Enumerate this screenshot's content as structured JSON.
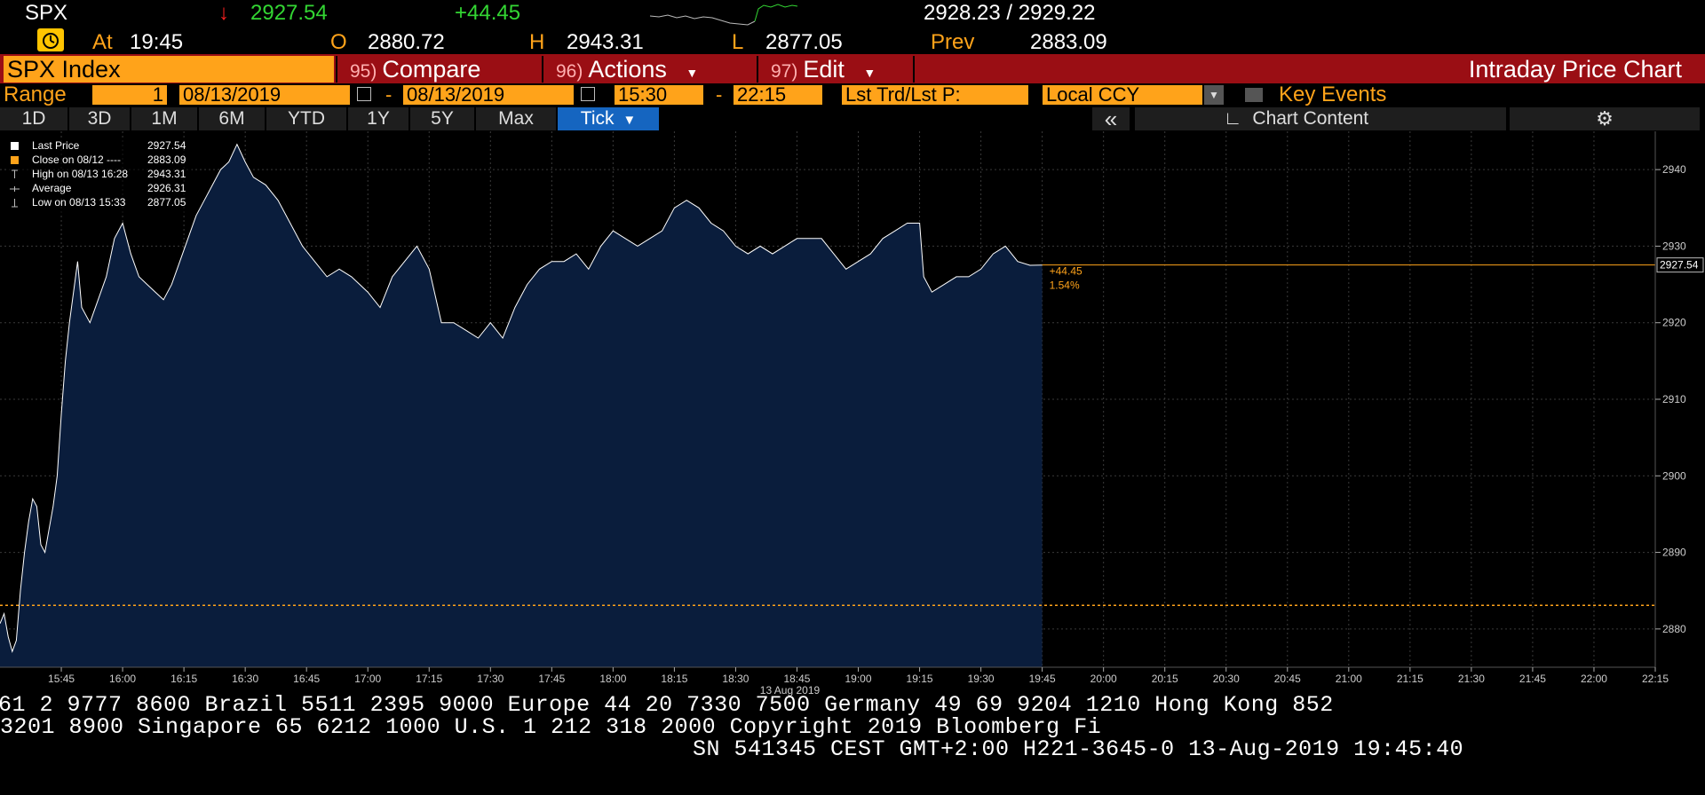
{
  "header": {
    "ticker": "SPX",
    "direction_icon": "down-arrow",
    "last": "2927.54",
    "change": "+44.45",
    "bid_ask": "2928.23 / 2929.22",
    "at_label": "At",
    "time": "19:45",
    "open_label": "O",
    "open": "2880.72",
    "high_label": "H",
    "high": "2943.31",
    "low_label": "L",
    "low": "2877.05",
    "prev_label": "Prev",
    "prev": "2883.09"
  },
  "toolbar": {
    "security": "SPX Index",
    "compare_num": "95)",
    "compare": "Compare",
    "actions_num": "96)",
    "actions": "Actions",
    "edit_num": "97)",
    "edit": "Edit",
    "title": "Intraday Price Chart"
  },
  "range": {
    "label": "Range",
    "count": "1",
    "start_date": "08/13/2019",
    "end_date": "08/13/2019",
    "start_time": "15:30",
    "end_time": "22:15",
    "field": "Lst Trd/Lst P:",
    "currency": "Local CCY",
    "key_events": "Key Events"
  },
  "periods": [
    "1D",
    "3D",
    "1M",
    "6M",
    "YTD",
    "1Y",
    "5Y",
    "Max"
  ],
  "active_period": "Tick",
  "chart_content": "Chart Content",
  "colors": {
    "area": "#0a1d3c",
    "line": "#ffffff",
    "prev_close": "#ffa31a",
    "grid": "#3a3a3a",
    "toolbar": "#9a0e14",
    "orange": "#ffa31a"
  },
  "chart_data": {
    "type": "area",
    "date_label": "13 Aug 2019",
    "x_ticks": [
      "15:45",
      "16:00",
      "16:15",
      "16:30",
      "16:45",
      "17:00",
      "17:15",
      "17:30",
      "17:45",
      "18:00",
      "18:15",
      "18:30",
      "18:45",
      "19:00",
      "19:15",
      "19:30",
      "19:45",
      "20:00",
      "20:15",
      "20:30",
      "20:45",
      "21:00",
      "21:15",
      "21:30",
      "21:45",
      "22:00",
      "22:15"
    ],
    "y_ticks": [
      2880,
      2890,
      2900,
      2910,
      2920,
      2930,
      2940
    ],
    "ylim": [
      2875,
      2945
    ],
    "xlim": [
      "15:30",
      "22:15"
    ],
    "prev_close": 2883.09,
    "last_price": 2927.54,
    "last_label": "2927.54",
    "change_label": "+44.45",
    "change_pct_label": "1.54%",
    "legend": [
      {
        "marker": "white-square",
        "label": "Last Price",
        "value": "2927.54"
      },
      {
        "marker": "orange-square",
        "label": "Close on 08/12 ----",
        "value": "2883.09"
      },
      {
        "marker": "high-marker",
        "label": "High on 08/13 16:28",
        "value": "2943.31"
      },
      {
        "marker": "average-marker",
        "label": "Average",
        "value": "2926.31"
      },
      {
        "marker": "low-marker",
        "label": "Low on 08/13 15:33",
        "value": "2877.05"
      }
    ],
    "series": [
      {
        "name": "Last Price",
        "points": [
          [
            "15:30",
            2880.7
          ],
          [
            "15:31",
            2882
          ],
          [
            "15:32",
            2879
          ],
          [
            "15:33",
            2877.05
          ],
          [
            "15:34",
            2878.5
          ],
          [
            "15:35",
            2885
          ],
          [
            "15:36",
            2890
          ],
          [
            "15:37",
            2894
          ],
          [
            "15:38",
            2897
          ],
          [
            "15:39",
            2896
          ],
          [
            "15:40",
            2891
          ],
          [
            "15:41",
            2890
          ],
          [
            "15:42",
            2893
          ],
          [
            "15:43",
            2896
          ],
          [
            "15:44",
            2900
          ],
          [
            "15:45",
            2908
          ],
          [
            "15:46",
            2915
          ],
          [
            "15:47",
            2920
          ],
          [
            "15:48",
            2924
          ],
          [
            "15:49",
            2928
          ],
          [
            "15:50",
            2922
          ],
          [
            "15:52",
            2920
          ],
          [
            "15:54",
            2923
          ],
          [
            "15:56",
            2926
          ],
          [
            "15:58",
            2931
          ],
          [
            "16:00",
            2933
          ],
          [
            "16:02",
            2929
          ],
          [
            "16:04",
            2926
          ],
          [
            "16:06",
            2925
          ],
          [
            "16:08",
            2924
          ],
          [
            "16:10",
            2923
          ],
          [
            "16:12",
            2925
          ],
          [
            "16:14",
            2928
          ],
          [
            "16:16",
            2931
          ],
          [
            "16:18",
            2934
          ],
          [
            "16:20",
            2936
          ],
          [
            "16:22",
            2938
          ],
          [
            "16:24",
            2940
          ],
          [
            "16:26",
            2941
          ],
          [
            "16:28",
            2943.3
          ],
          [
            "16:30",
            2941
          ],
          [
            "16:32",
            2939
          ],
          [
            "16:35",
            2938
          ],
          [
            "16:38",
            2936
          ],
          [
            "16:41",
            2933
          ],
          [
            "16:44",
            2930
          ],
          [
            "16:47",
            2928
          ],
          [
            "16:50",
            2926
          ],
          [
            "16:53",
            2927
          ],
          [
            "16:56",
            2926
          ],
          [
            "17:00",
            2924
          ],
          [
            "17:03",
            2922
          ],
          [
            "17:06",
            2926
          ],
          [
            "17:09",
            2928
          ],
          [
            "17:12",
            2930
          ],
          [
            "17:15",
            2927
          ],
          [
            "17:18",
            2920
          ],
          [
            "17:21",
            2920
          ],
          [
            "17:24",
            2919
          ],
          [
            "17:27",
            2918
          ],
          [
            "17:30",
            2920
          ],
          [
            "17:33",
            2918
          ],
          [
            "17:36",
            2922
          ],
          [
            "17:39",
            2925
          ],
          [
            "17:42",
            2927
          ],
          [
            "17:45",
            2928
          ],
          [
            "17:48",
            2928
          ],
          [
            "17:51",
            2929
          ],
          [
            "17:54",
            2927
          ],
          [
            "17:57",
            2930
          ],
          [
            "18:00",
            2932
          ],
          [
            "18:03",
            2931
          ],
          [
            "18:06",
            2930
          ],
          [
            "18:09",
            2931
          ],
          [
            "18:12",
            2932
          ],
          [
            "18:15",
            2935
          ],
          [
            "18:18",
            2936
          ],
          [
            "18:21",
            2935
          ],
          [
            "18:24",
            2933
          ],
          [
            "18:27",
            2932
          ],
          [
            "18:30",
            2930
          ],
          [
            "18:33",
            2929
          ],
          [
            "18:36",
            2930
          ],
          [
            "18:39",
            2929
          ],
          [
            "18:42",
            2930
          ],
          [
            "18:45",
            2931
          ],
          [
            "18:48",
            2931
          ],
          [
            "18:51",
            2931
          ],
          [
            "18:54",
            2929
          ],
          [
            "18:57",
            2927
          ],
          [
            "19:00",
            2928
          ],
          [
            "19:03",
            2929
          ],
          [
            "19:06",
            2931
          ],
          [
            "19:09",
            2932
          ],
          [
            "19:12",
            2933
          ],
          [
            "19:15",
            2933
          ],
          [
            "19:16",
            2926
          ],
          [
            "19:18",
            2924
          ],
          [
            "19:21",
            2925
          ],
          [
            "19:24",
            2926
          ],
          [
            "19:27",
            2926
          ],
          [
            "19:30",
            2927
          ],
          [
            "19:33",
            2929
          ],
          [
            "19:36",
            2930
          ],
          [
            "19:39",
            2928
          ],
          [
            "19:42",
            2927.5
          ],
          [
            "19:45",
            2927.54
          ]
        ]
      }
    ]
  },
  "footer": {
    "line1": "61 2 9777 8600 Brazil 5511 2395 9000 Europe 44 20 7330 7500 Germany 49 69 9204 1210 Hong Kong 852",
    "line2": " 3201 8900       Singapore 65 6212 1000       U.S. 1 212 318 2000       Copyright 2019 Bloomberg Fi",
    "line3": "SN 541345 CEST GMT+2:00 H221-3645-0 13-Aug-2019 19:45:40"
  }
}
